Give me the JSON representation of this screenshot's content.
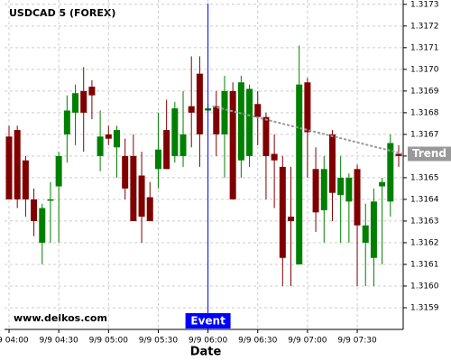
{
  "chart_data": {
    "type": "candlestick",
    "title": "USDCAD 5 (FOREX)",
    "x_label": "Date",
    "watermark": "www.delkos.com",
    "categories": [
      "9/9 04:00",
      null,
      null,
      null,
      null,
      null,
      "9/9 04:30",
      null,
      null,
      null,
      null,
      null,
      "9/9 05:00",
      null,
      null,
      null,
      null,
      null,
      "9/9 05:30",
      null,
      null,
      null,
      null,
      null,
      "9/9 06:00",
      null,
      null,
      null,
      null,
      null,
      "9/9 06:30",
      null,
      null,
      null,
      null,
      null,
      "9/9 07:00",
      null,
      null,
      null,
      null,
      null,
      "9/9 07:30",
      null,
      null,
      null,
      null,
      null
    ],
    "open": [
      1.31669,
      1.31672,
      1.31658,
      1.3164,
      1.3162,
      1.3164,
      1.31646,
      1.3167,
      1.3168,
      1.3169,
      1.31692,
      1.3166,
      1.3167,
      1.31664,
      1.3166,
      1.3166,
      1.31651,
      1.31641,
      1.31654,
      1.31672,
      1.3166,
      1.3166,
      1.31683,
      1.31698,
      1.31681,
      1.31683,
      1.3167,
      1.3169,
      1.31658,
      1.3166,
      1.31684,
      1.31678,
      1.31661,
      1.31655,
      1.31632,
      1.3161,
      1.31694,
      1.31654,
      1.31635,
      1.3167,
      1.31642,
      1.31639,
      1.31654,
      1.3162,
      1.31613,
      1.31646,
      1.31639,
      1.31661
    ],
    "high": [
      1.31674,
      1.31674,
      1.3166,
      1.31645,
      1.31638,
      1.31648,
      1.31662,
      1.31688,
      1.31693,
      1.31701,
      1.31695,
      1.31681,
      1.31674,
      1.31674,
      1.31668,
      1.3167,
      1.31662,
      1.31648,
      1.3168,
      1.31686,
      1.31685,
      1.3169,
      1.31706,
      1.31706,
      1.31684,
      1.3169,
      1.31697,
      1.31694,
      1.31697,
      1.31693,
      1.3169,
      1.3168,
      1.3167,
      1.3166,
      1.31655,
      1.31711,
      1.31696,
      1.31664,
      1.3166,
      1.31672,
      1.3166,
      1.31652,
      1.31656,
      1.31638,
      1.31645,
      1.3165,
      1.3167,
      1.31665
    ],
    "low": [
      1.3164,
      1.31636,
      1.31632,
      1.31623,
      1.3161,
      1.3162,
      1.3162,
      1.31657,
      1.31665,
      1.31662,
      1.31677,
      1.31653,
      1.31665,
      1.3165,
      1.3164,
      1.3163,
      1.3162,
      1.3163,
      1.31645,
      1.31654,
      1.31657,
      1.31655,
      1.31664,
      1.31655,
      1.3168,
      1.3166,
      1.3165,
      1.3164,
      1.3165,
      1.31655,
      1.31665,
      1.3164,
      1.31636,
      1.316,
      1.316,
      1.3161,
      1.3165,
      1.31625,
      1.3162,
      1.3163,
      1.3162,
      1.3162,
      1.316,
      1.316,
      1.316,
      1.3161,
      1.31632,
      1.31655
    ],
    "close": [
      1.3164,
      1.3164,
      1.3164,
      1.3163,
      1.31636,
      1.3164,
      1.3166,
      1.31681,
      1.31689,
      1.3168,
      1.31688,
      1.31669,
      1.31668,
      1.31672,
      1.31645,
      1.3163,
      1.31632,
      1.3163,
      1.31663,
      1.31654,
      1.31682,
      1.3167,
      1.3168,
      1.3167,
      1.31682,
      1.3167,
      1.3169,
      1.3164,
      1.31694,
      1.31691,
      1.31678,
      1.3166,
      1.31658,
      1.31613,
      1.3163,
      1.31693,
      1.31671,
      1.31634,
      1.31654,
      1.31643,
      1.3165,
      1.3165,
      1.31628,
      1.31628,
      1.31639,
      1.31648,
      1.31666,
      1.3166
    ],
    "up_color": "#008000",
    "down_color": "#800000",
    "ylim": [
      1.3158,
      1.31732
    ],
    "yticks": [
      1.3159,
      {
        "value": 1.316,
        "label": "1.3160"
      },
      1.3161,
      1.3162,
      1.3163,
      1.3164,
      1.3165,
      1.3166,
      1.3167,
      1.3168,
      1.3169,
      {
        "value": 1.317,
        "label": "1.3170"
      },
      1.3171,
      1.3172,
      1.3173
    ],
    "grid": true,
    "event": {
      "label": "Event",
      "at": "9/9 06:00",
      "color": "#0000ff"
    },
    "trend": {
      "label": "Trend",
      "from": "9/9 06:00",
      "values": [
        1.31683,
        1.31661
      ],
      "color": "#999999"
    }
  }
}
